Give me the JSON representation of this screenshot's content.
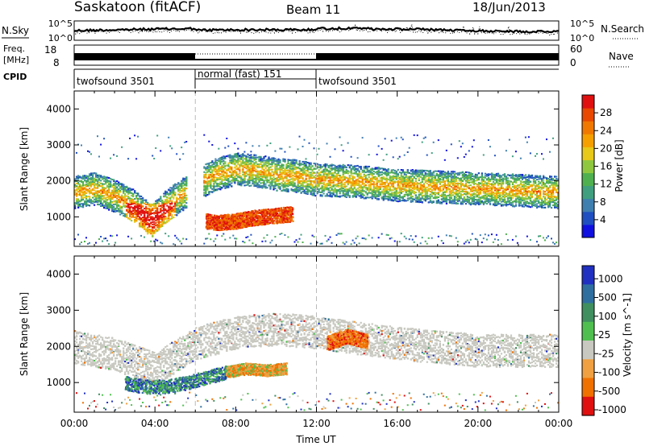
{
  "header": {
    "station": "Saskatoon (fitACF)",
    "beam": "Beam 11",
    "date": "18/Jun/2013"
  },
  "noise_panel": {
    "left_label": "N.Sky",
    "right_label": "N.Search",
    "left_ticks": [
      "10^5",
      "10^0"
    ],
    "right_ticks": [
      "10^5",
      "10^0"
    ]
  },
  "freq_panel": {
    "left_label_top": "Freq.",
    "left_label_bottom": "[MHz]",
    "left_ticks": [
      "18",
      "8"
    ],
    "right_label": "Nave",
    "right_ticks": [
      "60",
      "0"
    ]
  },
  "cpid_panel": {
    "label": "CPID",
    "segments": [
      {
        "start_hour": 0,
        "end_hour": 6,
        "name": "twofsound 3501"
      },
      {
        "start_hour": 6,
        "end_hour": 12,
        "name": "normal (fast) 151"
      },
      {
        "start_hour": 12,
        "end_hour": 24,
        "name": "twofsound 3501"
      }
    ]
  },
  "chart_data": [
    {
      "type": "heatmap",
      "title": "",
      "xlabel": "Time UT",
      "ylabel": "Slant Range [km]",
      "xlim": [
        0,
        24
      ],
      "ylim": [
        180,
        4500
      ],
      "x_ticks": [
        "00:00",
        "04:00",
        "08:00",
        "12:00",
        "16:00",
        "20:00",
        "00:00"
      ],
      "y_ticks": [
        "1000",
        "2000",
        "3000",
        "4000"
      ],
      "y_tick_values": [
        1000,
        2000,
        3000,
        4000
      ],
      "colorbar": {
        "label": "Power [dB]",
        "range": [
          0,
          32
        ],
        "ticks": [
          "4",
          "8",
          "12",
          "16",
          "20",
          "24",
          "28"
        ],
        "colors": [
          "#1010e0",
          "#1f4fc0",
          "#3f7fb0",
          "#3f9f7f",
          "#4fb04f",
          "#8fc83f",
          "#e8c818",
          "#f5a000",
          "#f07800",
          "#e84800",
          "#e01010"
        ]
      },
      "echo_bands": [
        {
          "name": "ionospheric band",
          "time": [
            0,
            1,
            2,
            3,
            3.8,
            4.5,
            6,
            7,
            8,
            9,
            10,
            11,
            12,
            14,
            16,
            18,
            20,
            22,
            24
          ],
          "range": [
            1700,
            1800,
            1600,
            1300,
            900,
            1300,
            1900,
            2200,
            2350,
            2300,
            2200,
            2150,
            2050,
            2000,
            1900,
            1850,
            1800,
            1750,
            1700
          ]
        },
        {
          "name": "near-range patch",
          "time": [
            6.5,
            7,
            8,
            9,
            10,
            10.8
          ],
          "range": [
            900,
            850,
            900,
            1000,
            1050,
            1100
          ]
        }
      ]
    },
    {
      "type": "heatmap",
      "title": "",
      "xlabel": "Time UT",
      "ylabel": "Slant Range [km]",
      "xlim": [
        0,
        24
      ],
      "ylim": [
        180,
        4500
      ],
      "x_ticks": [
        "00:00",
        "04:00",
        "08:00",
        "12:00",
        "16:00",
        "20:00",
        "00:00"
      ],
      "y_ticks": [
        "1000",
        "2000",
        "3000",
        "4000"
      ],
      "y_tick_values": [
        1000,
        2000,
        3000,
        4000
      ],
      "colorbar": {
        "label": "Velocity [m s^-1]",
        "ticks": [
          "1000",
          "500",
          "100",
          "25",
          "-25",
          "-100",
          "-500",
          "-1000"
        ],
        "colors": [
          "#2030c0",
          "#2f6fa0",
          "#3f8f5f",
          "#4fc04f",
          "#c8c8c0",
          "#f0a040",
          "#f07000",
          "#e01010"
        ]
      },
      "echo_bands": [
        {
          "name": "ground scatter band",
          "time": [
            0,
            2,
            4,
            6,
            8,
            10,
            12,
            16,
            20,
            24
          ],
          "range": [
            2000,
            1800,
            1400,
            2100,
            2400,
            2500,
            2400,
            2100,
            1900,
            1900
          ]
        },
        {
          "name": "green/blue patch",
          "time": [
            2.5,
            3.5,
            4.5,
            5.5,
            6.5,
            7.5
          ],
          "range": [
            1000,
            900,
            900,
            1000,
            1150,
            1300
          ]
        },
        {
          "name": "orange patch",
          "time": [
            7.5,
            8.5,
            9.5,
            10.5
          ],
          "range": [
            1300,
            1400,
            1350,
            1400
          ]
        },
        {
          "name": "red patch",
          "time": [
            12.5,
            13.5,
            14.5
          ],
          "range": [
            2100,
            2300,
            2150
          ]
        }
      ]
    }
  ]
}
